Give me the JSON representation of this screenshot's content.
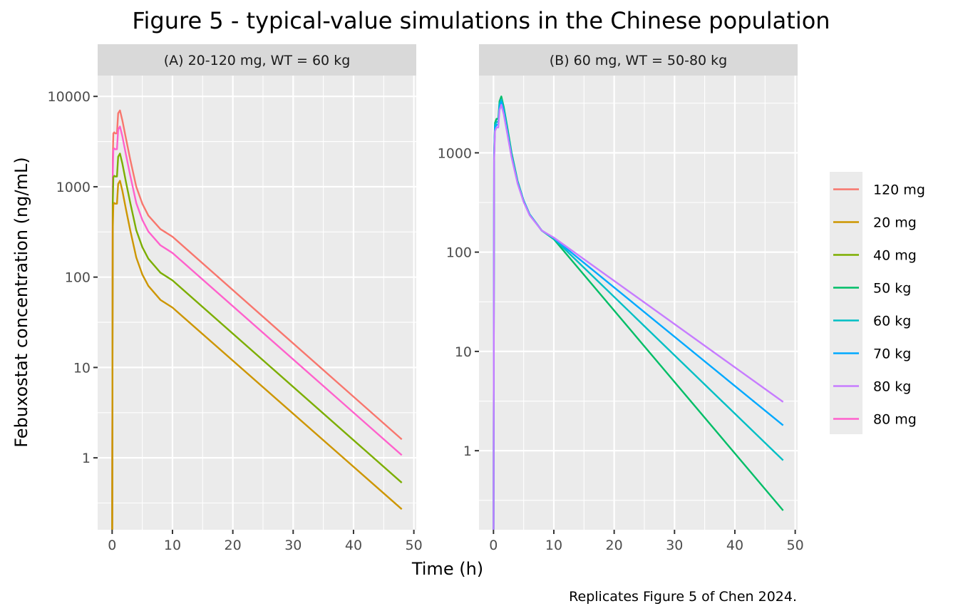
{
  "chart_data": {
    "type": "line",
    "title": "Figure 5 - typical-value simulations in the Chinese population",
    "xlabel": "Time (h)",
    "ylabel": "Febuxostat concentration (ng/mL)",
    "caption": "Replicates Figure 5 of Chen 2024.",
    "y_scale": "log10",
    "grid": true,
    "legend_position": "right",
    "x_ticks": [
      0,
      10,
      20,
      30,
      40,
      50
    ],
    "x_tick_labels": [
      "0",
      "10",
      "20",
      "30",
      "40",
      "50"
    ],
    "legend": [
      {
        "name": "120 mg",
        "color": "#F8766D"
      },
      {
        "name": "20 mg",
        "color": "#CD9600"
      },
      {
        "name": "40 mg",
        "color": "#7CAE00"
      },
      {
        "name": "50 kg",
        "color": "#00BE67"
      },
      {
        "name": "60 kg",
        "color": "#00BFC4"
      },
      {
        "name": "70 kg",
        "color": "#00A9FF"
      },
      {
        "name": "80 kg",
        "color": "#C77CFF"
      },
      {
        "name": "80 mg",
        "color": "#FF61CC"
      }
    ],
    "panels": [
      {
        "strip": "(A) 20-120 mg, WT = 60 kg",
        "xlim": [
          -2.4,
          50.4
        ],
        "ylim": [
          0.16,
          17000
        ],
        "y_ticks": [
          1,
          10,
          100,
          1000,
          10000
        ],
        "y_tick_labels": [
          "1",
          "10",
          "100",
          "1000",
          "10000"
        ],
        "series": [
          {
            "name": "120 mg",
            "color": "#F8766D",
            "x": [
              0,
              0.1,
              0.2,
              0.35,
              0.5,
              0.8,
              1.0,
              1.3,
              1.7,
              2.3,
              3,
              4,
              5,
              6,
              8,
              10,
              48
            ],
            "y": [
              0.05,
              2000,
              3900,
              4000,
              3900,
              3900,
              6500,
              7000,
              5400,
              3400,
              2000,
              1000,
              650,
              480,
              340,
              280,
              1.6
            ]
          },
          {
            "name": "80 mg",
            "color": "#FF61CC",
            "x": [
              0,
              0.1,
              0.2,
              0.35,
              0.5,
              0.8,
              1.0,
              1.3,
              1.7,
              2.3,
              3,
              4,
              5,
              6,
              8,
              10,
              48
            ],
            "y": [
              0.05,
              1300,
              2550,
              2650,
              2600,
              2600,
              4300,
              4650,
              3600,
              2250,
              1330,
              660,
              430,
              320,
              225,
              185,
              1.07
            ]
          },
          {
            "name": "40 mg",
            "color": "#7CAE00",
            "x": [
              0,
              0.1,
              0.2,
              0.35,
              0.5,
              0.8,
              1.0,
              1.3,
              1.7,
              2.3,
              3,
              4,
              5,
              6,
              8,
              10,
              48
            ],
            "y": [
              0.05,
              650,
              1270,
              1320,
              1300,
              1300,
              2150,
              2330,
              1800,
              1120,
              665,
              330,
              215,
              160,
              112,
              92,
              0.53
            ]
          },
          {
            "name": "20 mg",
            "color": "#CD9600",
            "x": [
              0,
              0.1,
              0.2,
              0.35,
              0.5,
              0.8,
              1.0,
              1.3,
              1.7,
              2.3,
              3,
              4,
              5,
              6,
              8,
              10,
              48
            ],
            "y": [
              0.05,
              325,
              635,
              660,
              650,
              650,
              1075,
              1165,
              900,
              560,
              330,
              165,
              107,
              80,
              56,
              46,
              0.27
            ]
          }
        ]
      },
      {
        "strip": "(B) 60 mg, WT = 50-80 kg",
        "xlim": [
          -2.4,
          50.4
        ],
        "ylim": [
          0.16,
          6000
        ],
        "y_ticks": [
          1,
          10,
          100,
          1000
        ],
        "y_tick_labels": [
          "1",
          "10",
          "100",
          "1000"
        ],
        "series": [
          {
            "name": "50 kg",
            "color": "#00BE67",
            "x": [
              0,
              0.1,
              0.25,
              0.5,
              0.8,
              1.0,
              1.3,
              1.7,
              2.3,
              3,
              4,
              5,
              6,
              8,
              10,
              48
            ],
            "y": [
              0.05,
              1000,
              2000,
              2200,
              2200,
              3300,
              3700,
              2900,
              1800,
              1000,
              520,
              330,
              240,
              165,
              135,
              0.25
            ]
          },
          {
            "name": "60 kg",
            "color": "#00BFC4",
            "x": [
              0,
              0.1,
              0.25,
              0.5,
              0.8,
              1.0,
              1.3,
              1.7,
              2.3,
              3,
              4,
              5,
              6,
              8,
              10,
              48
            ],
            "y": [
              0.05,
              950,
              1900,
              2050,
              2050,
              3100,
              3450,
              2750,
              1700,
              960,
              510,
              330,
              240,
              165,
              137,
              0.8
            ]
          },
          {
            "name": "70 kg",
            "color": "#00A9FF",
            "x": [
              0,
              0.1,
              0.25,
              0.5,
              0.8,
              1.0,
              1.3,
              1.7,
              2.3,
              3,
              4,
              5,
              6,
              8,
              10,
              48
            ],
            "y": [
              0.05,
              880,
              1780,
              1920,
              1920,
              2900,
              3250,
              2600,
              1620,
              930,
              500,
              325,
              238,
              165,
              138,
              1.8
            ]
          },
          {
            "name": "80 kg",
            "color": "#C77CFF",
            "x": [
              0,
              0.1,
              0.25,
              0.5,
              0.8,
              1.0,
              1.3,
              1.7,
              2.3,
              3,
              4,
              5,
              6,
              8,
              10,
              48
            ],
            "y": [
              0.05,
              820,
              1650,
              1800,
              1800,
              2700,
              3050,
              2450,
              1550,
              900,
              490,
              320,
              235,
              165,
              140,
              3.1
            ]
          }
        ]
      }
    ]
  }
}
